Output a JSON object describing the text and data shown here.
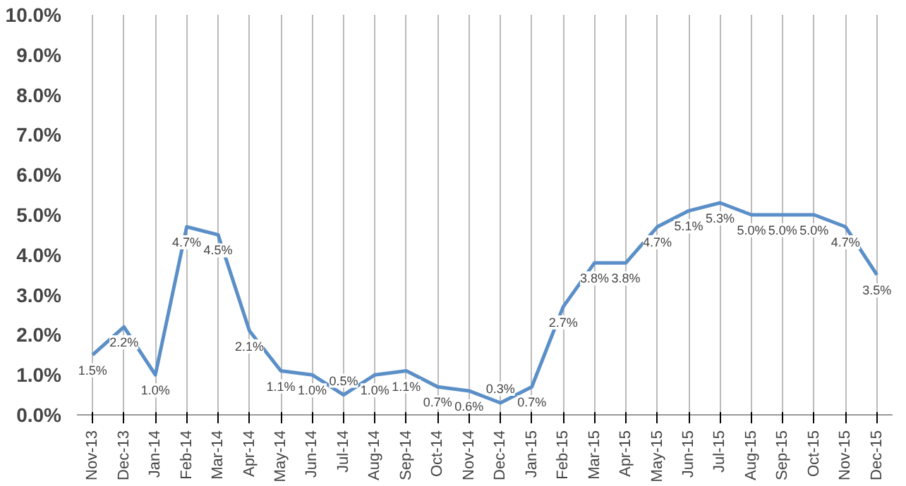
{
  "chart_data": {
    "type": "line",
    "categories": [
      "Nov-13",
      "Dec-13",
      "Jan-14",
      "Feb-14",
      "Mar-14",
      "Apr-14",
      "May-14",
      "Jun-14",
      "Jul-14",
      "Aug-14",
      "Sep-14",
      "Oct-14",
      "Nov-14",
      "Dec-14",
      "Jan-15",
      "Feb-15",
      "Mar-15",
      "Apr-15",
      "May-15",
      "Jun-15",
      "Jul-15",
      "Aug-15",
      "Sep-15",
      "Oct-15",
      "Nov-15",
      "Dec-15"
    ],
    "series": [
      {
        "color": "#5b8fc7",
        "values": [
          1.5,
          2.2,
          1.0,
          4.7,
          4.5,
          2.1,
          1.1,
          1.0,
          0.5,
          1.0,
          1.1,
          0.7,
          0.6,
          0.3,
          0.7,
          2.7,
          3.8,
          3.8,
          4.7,
          5.1,
          5.3,
          5.0,
          5.0,
          5.0,
          4.7,
          3.5
        ],
        "value_labels": [
          "1.5%",
          "2.2%",
          "1.0%",
          "4.7%",
          "4.5%",
          "2.1%",
          "1.1%",
          "1.0%",
          "0.5%",
          "1.0%",
          "1.1%",
          "0.7%",
          "0.6%",
          "0.3%",
          "0.7%",
          "2.7%",
          "3.8%",
          "3.8%",
          "4.7%",
          "5.1%",
          "5.3%",
          "5.0%",
          "5.0%",
          "5.0%",
          "4.7%",
          "3.5%"
        ]
      }
    ],
    "ylim": [
      0,
      10
    ],
    "yticks": [
      {
        "value": 0,
        "label": "0.0%"
      },
      {
        "value": 1,
        "label": "1.0%"
      },
      {
        "value": 2,
        "label": "2.0%"
      },
      {
        "value": 3,
        "label": "3.0%"
      },
      {
        "value": 4,
        "label": "4.0%"
      },
      {
        "value": 5,
        "label": "5.0%"
      },
      {
        "value": 6,
        "label": "6.0%"
      },
      {
        "value": 7,
        "label": "7.0%"
      },
      {
        "value": 8,
        "label": "8.0%"
      },
      {
        "value": 9,
        "label": "9.0%"
      },
      {
        "value": 10,
        "label": "10.0%"
      }
    ],
    "grid": "x",
    "marker": "none",
    "line_style": "solid"
  }
}
